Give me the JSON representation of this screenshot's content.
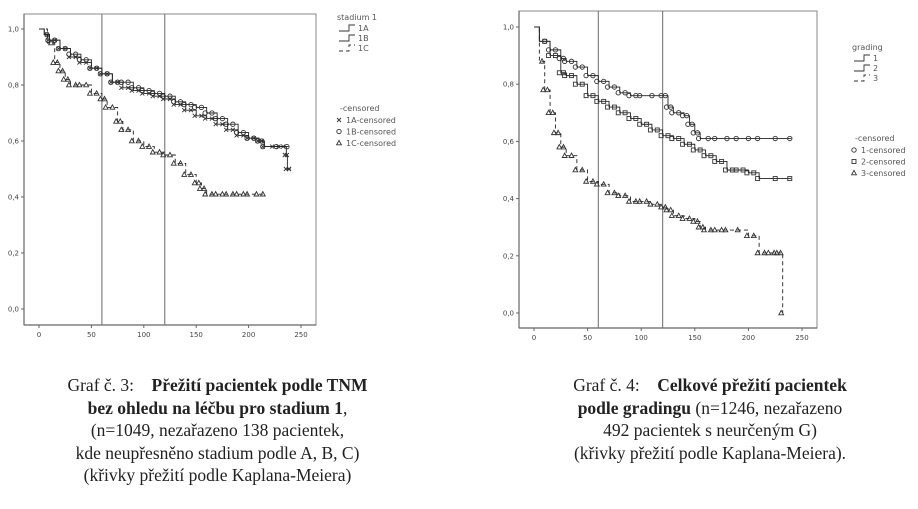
{
  "chart_data": [
    {
      "type": "line",
      "subtype": "kaplan-meier",
      "title": "",
      "xlabel": "",
      "ylabel": "",
      "xlim": [
        -10,
        265
      ],
      "ylim": [
        -0.05,
        1.05
      ],
      "x_ticks": [
        "0",
        "50",
        "100",
        "150",
        "200",
        "250"
      ],
      "x_tick_values": [
        0,
        50,
        100,
        150,
        200,
        250
      ],
      "y_ticks": [
        "0,0",
        "0,2",
        "0,4",
        "0,6",
        "0,8",
        "1,0"
      ],
      "y_tick_values": [
        0,
        0.2,
        0.4,
        0.6,
        0.8,
        1.0
      ],
      "reference_lines_x": [
        60,
        120
      ],
      "grid": false,
      "legend_placement": "right",
      "legend": {
        "title": "stadium 1",
        "entries": [
          "1A",
          "1B",
          "1C"
        ],
        "censored_title": "-censored",
        "censored_entries": [
          "1A-censored",
          "1B-censored",
          "1C-censored"
        ]
      },
      "series": [
        {
          "name": "1A",
          "marker": "x",
          "style": "solid",
          "x": [
            0,
            5,
            10,
            20,
            30,
            40,
            50,
            60,
            70,
            80,
            90,
            100,
            110,
            120,
            130,
            140,
            150,
            160,
            170,
            180,
            190,
            200,
            210,
            215,
            230,
            236,
            237,
            240
          ],
          "y": [
            1.0,
            0.98,
            0.96,
            0.93,
            0.9,
            0.88,
            0.86,
            0.84,
            0.81,
            0.79,
            0.78,
            0.77,
            0.76,
            0.75,
            0.73,
            0.71,
            0.69,
            0.68,
            0.66,
            0.64,
            0.62,
            0.61,
            0.6,
            0.58,
            0.58,
            0.55,
            0.5,
            0.5
          ]
        },
        {
          "name": "1B",
          "marker": "o",
          "style": "solid",
          "x": [
            0,
            5,
            10,
            20,
            30,
            40,
            50,
            60,
            70,
            80,
            90,
            100,
            110,
            120,
            130,
            140,
            150,
            160,
            170,
            180,
            190,
            200,
            210,
            215,
            238
          ],
          "y": [
            1.0,
            0.98,
            0.96,
            0.93,
            0.91,
            0.89,
            0.86,
            0.84,
            0.81,
            0.81,
            0.79,
            0.78,
            0.77,
            0.76,
            0.74,
            0.73,
            0.72,
            0.7,
            0.68,
            0.66,
            0.63,
            0.61,
            0.6,
            0.58,
            0.58
          ]
        },
        {
          "name": "1C",
          "marker": "triangle",
          "style": "dashed",
          "x": [
            0,
            8,
            15,
            20,
            25,
            30,
            40,
            50,
            60,
            65,
            75,
            80,
            90,
            100,
            110,
            120,
            130,
            140,
            150,
            155,
            160,
            170,
            180,
            190,
            200,
            215
          ],
          "y": [
            1.0,
            0.95,
            0.88,
            0.85,
            0.82,
            0.8,
            0.8,
            0.77,
            0.75,
            0.72,
            0.67,
            0.64,
            0.6,
            0.58,
            0.56,
            0.55,
            0.52,
            0.48,
            0.45,
            0.43,
            0.41,
            0.41,
            0.41,
            0.41,
            0.41,
            0.41
          ]
        }
      ]
    },
    {
      "type": "line",
      "subtype": "kaplan-meier",
      "title": "",
      "xlabel": "",
      "ylabel": "",
      "xlim": [
        -10,
        265
      ],
      "ylim": [
        -0.05,
        1.05
      ],
      "x_ticks": [
        "0",
        "50",
        "100",
        "150",
        "200",
        "250"
      ],
      "x_tick_values": [
        0,
        50,
        100,
        150,
        200,
        250
      ],
      "y_ticks": [
        "0,0",
        "0,2",
        "0,4",
        "0,6",
        "0,8",
        "1,0"
      ],
      "y_tick_values": [
        0,
        0.2,
        0.4,
        0.6,
        0.8,
        1.0
      ],
      "reference_lines_x": [
        60,
        120
      ],
      "grid": false,
      "legend_placement": "right",
      "legend": {
        "title": "grading",
        "entries": [
          "1",
          "2",
          "3"
        ],
        "censored_title": "-censored",
        "censored_entries": [
          "1-censored",
          "2-censored",
          "3-censored"
        ]
      },
      "series": [
        {
          "name": "1",
          "marker": "o",
          "style": "solid",
          "x": [
            0,
            5,
            15,
            25,
            30,
            40,
            50,
            60,
            70,
            80,
            90,
            100,
            120,
            125,
            130,
            140,
            145,
            150,
            155,
            170,
            190,
            210,
            240
          ],
          "y": [
            1.0,
            0.95,
            0.92,
            0.89,
            0.88,
            0.86,
            0.83,
            0.81,
            0.79,
            0.77,
            0.76,
            0.76,
            0.76,
            0.72,
            0.7,
            0.69,
            0.66,
            0.63,
            0.61,
            0.61,
            0.61,
            0.61,
            0.61
          ]
        },
        {
          "name": "2",
          "marker": "square",
          "style": "solid",
          "x": [
            0,
            5,
            15,
            25,
            30,
            40,
            50,
            60,
            70,
            80,
            90,
            100,
            110,
            120,
            130,
            140,
            150,
            160,
            170,
            180,
            190,
            200,
            210,
            240
          ],
          "y": [
            1.0,
            0.95,
            0.9,
            0.84,
            0.83,
            0.8,
            0.76,
            0.74,
            0.72,
            0.7,
            0.68,
            0.66,
            0.64,
            0.62,
            0.61,
            0.59,
            0.57,
            0.55,
            0.53,
            0.5,
            0.5,
            0.49,
            0.47,
            0.47
          ]
        },
        {
          "name": "3",
          "marker": "triangle",
          "style": "dashed",
          "x": [
            0,
            5,
            10,
            15,
            20,
            25,
            30,
            40,
            50,
            60,
            70,
            80,
            90,
            100,
            110,
            120,
            125,
            130,
            140,
            150,
            155,
            160,
            170,
            180,
            200,
            210,
            220,
            228,
            232
          ],
          "y": [
            1.0,
            0.88,
            0.78,
            0.7,
            0.63,
            0.58,
            0.55,
            0.5,
            0.46,
            0.45,
            0.42,
            0.41,
            0.39,
            0.39,
            0.38,
            0.37,
            0.36,
            0.34,
            0.33,
            0.32,
            0.3,
            0.29,
            0.29,
            0.29,
            0.27,
            0.21,
            0.21,
            0.21,
            0.0
          ]
        }
      ]
    }
  ],
  "captions": {
    "left": {
      "label": "Graf č. 3:",
      "bold_title_1": "Přežití pacientek podle TNM",
      "bold_title_2": "bez ohledu na léčbu pro stadium 1",
      "title_suffix": ",",
      "line_3": "(n=1049, nezařazeno 138 pacientek,",
      "line_4": "kde neupřesněno stadium podle A, B, C)",
      "line_5": "(křivky přežití podle Kaplana-Meiera)"
    },
    "right": {
      "label": "Graf č. 4:",
      "bold_title_1": "Celkové přežití pacientek",
      "bold_title_2": "podle gradingu",
      "line_2_suffix": " (n=1246, nezařazeno",
      "line_3": "492 pacientek s neurčeným G)",
      "line_4": "(křivky přežití podle Kaplana-Meiera)."
    }
  }
}
